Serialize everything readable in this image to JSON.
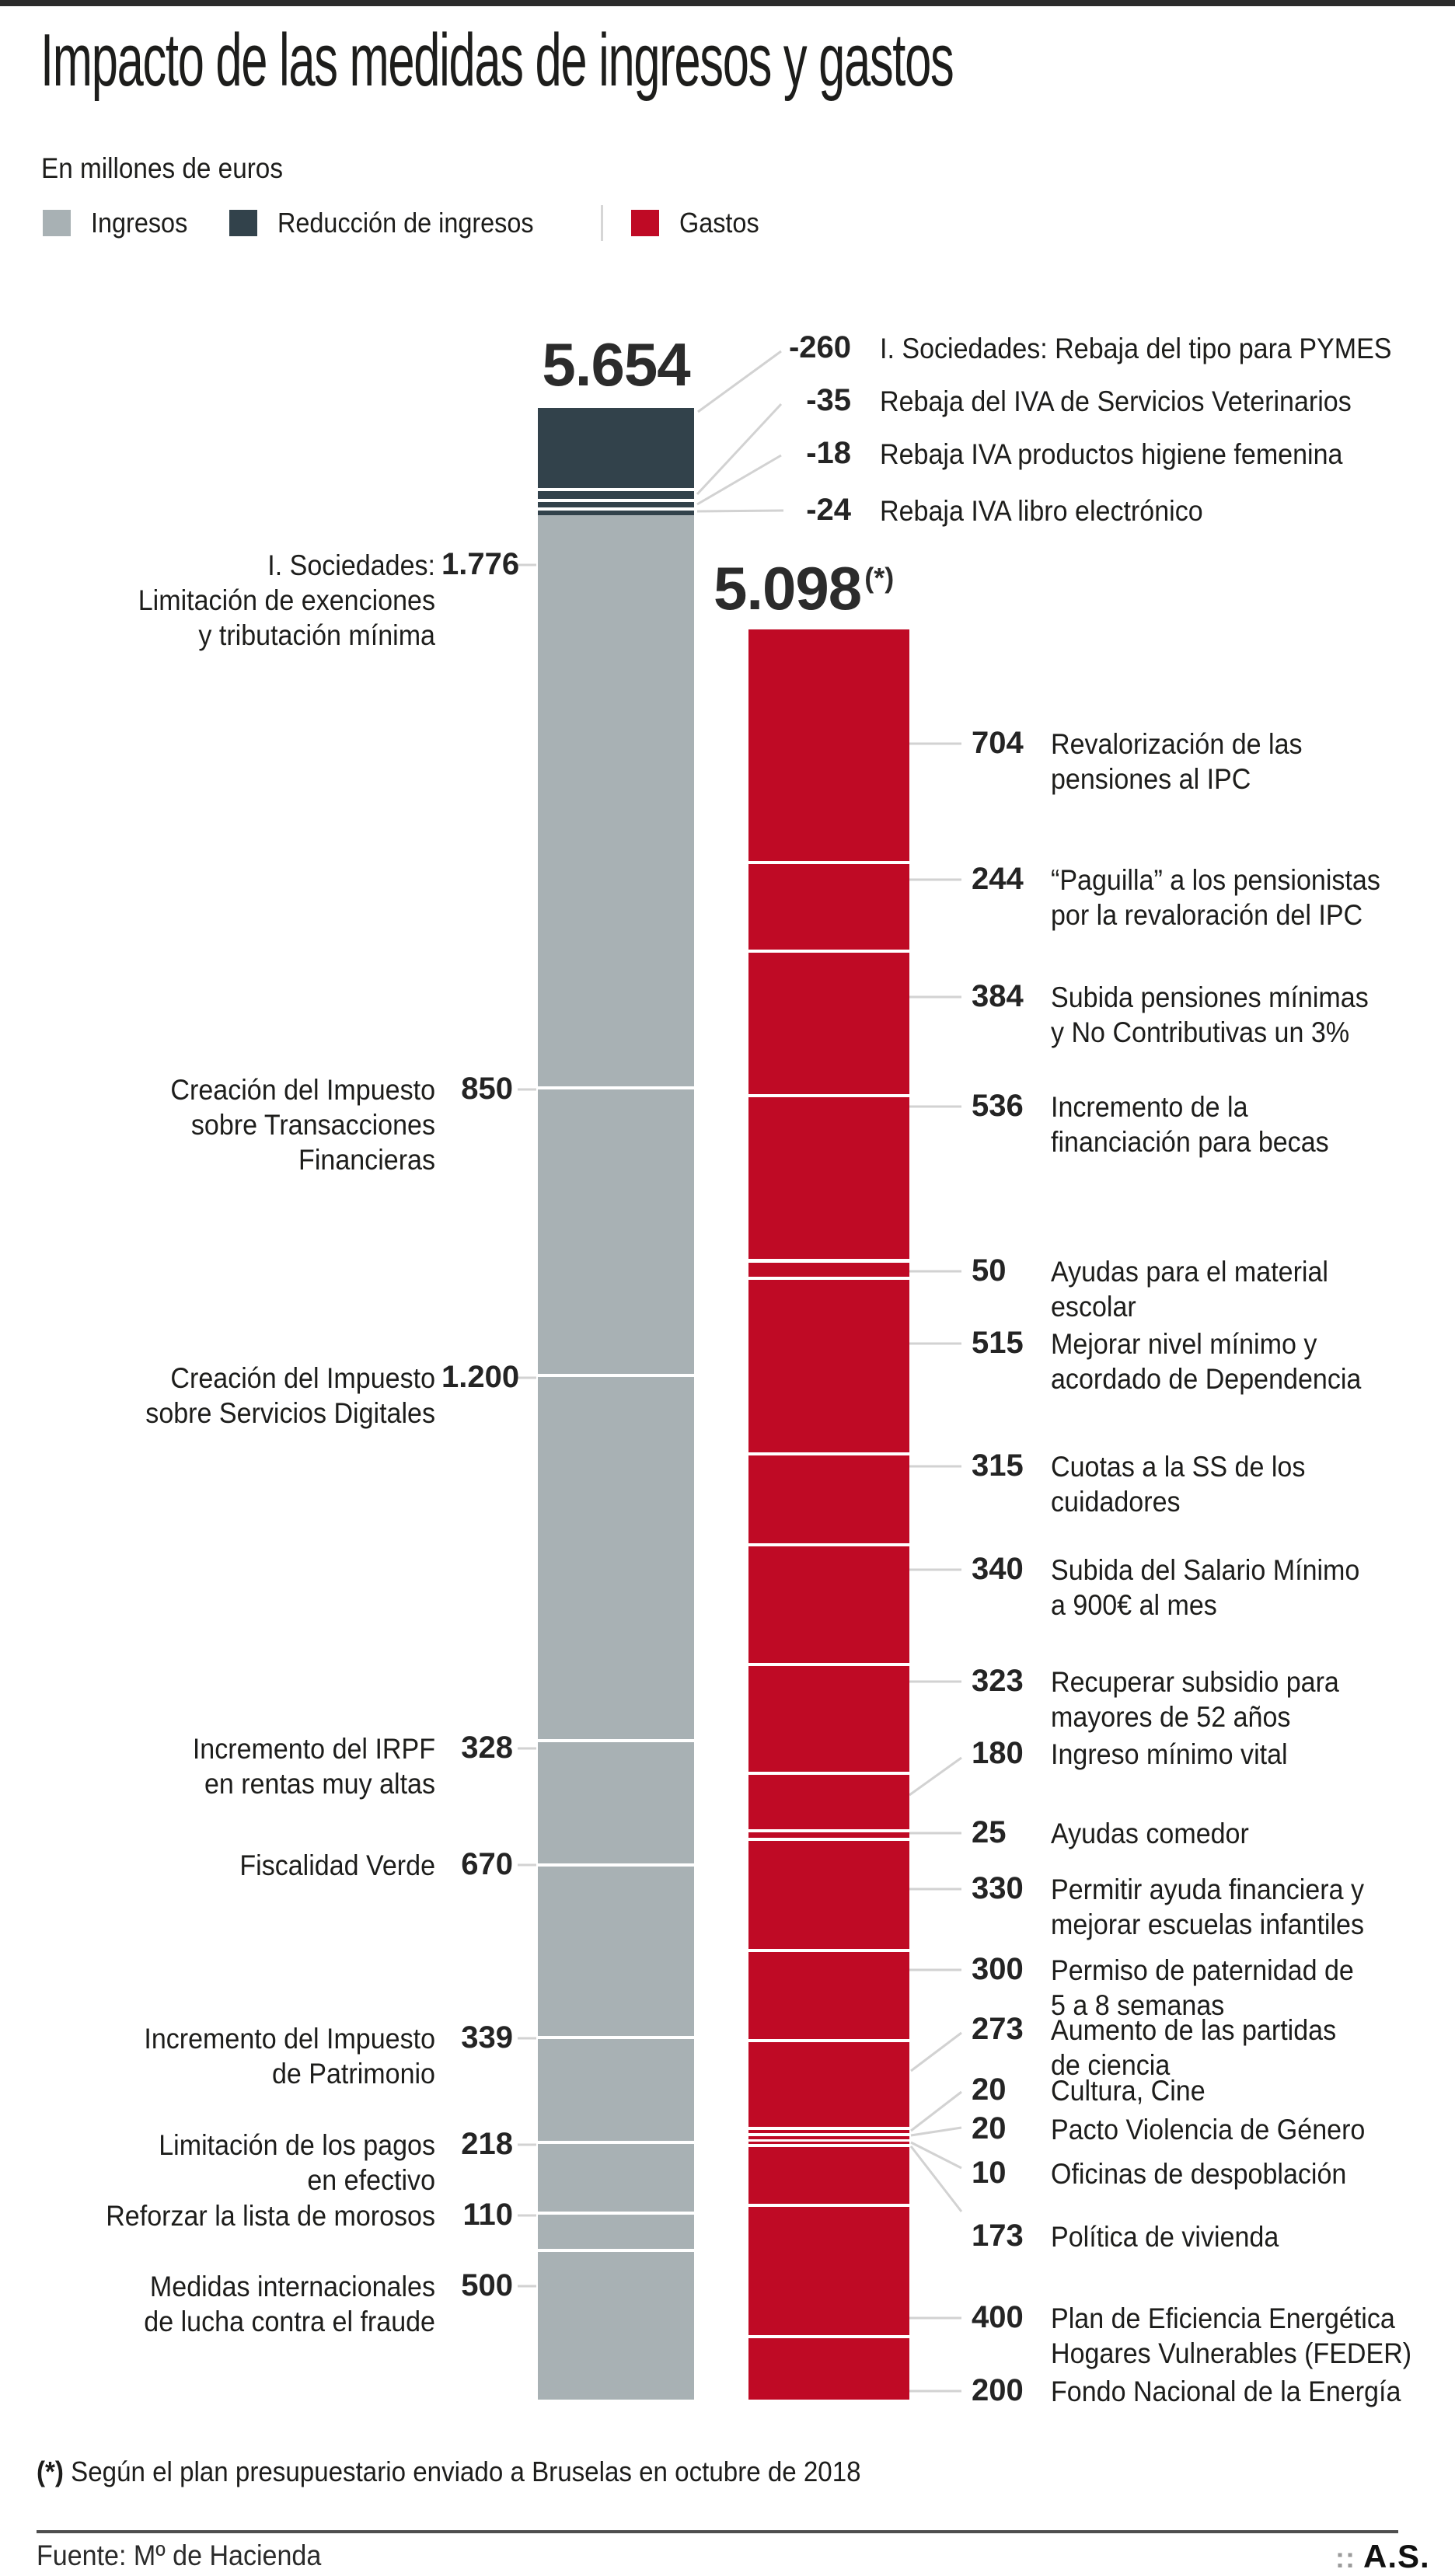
{
  "page": {
    "title": "Impacto de las medidas de ingresos y gastos",
    "subtitle": "En millones de euros"
  },
  "legend": {
    "items": [
      {
        "label": "Ingresos",
        "color": "#a8b1b4"
      },
      {
        "label": "Reducción de ingresos",
        "color": "#32424b"
      },
      {
        "label": "Gastos",
        "color": "#bf0a25"
      }
    ]
  },
  "chart_data": {
    "type": "bar",
    "subtype": "stacked-column-infographic",
    "unit": "millones de euros",
    "colors": {
      "ingresos": "#a8b1b4",
      "reduccion": "#32424b",
      "gastos": "#bf0a25",
      "connector": "#d2d2d2"
    },
    "columns": [
      {
        "id": "ingresos",
        "total_label": "5.654",
        "total_value": 5654,
        "reduction_items": [
          {
            "value": -260,
            "value_label": "-260",
            "label": "I. Sociedades: Rebaja del tipo para PYMES"
          },
          {
            "value": -35,
            "value_label": "-35",
            "label": "Rebaja del IVA de Servicios Veterinarios"
          },
          {
            "value": -18,
            "value_label": "-18",
            "label": "Rebaja IVA productos higiene femenina"
          },
          {
            "value": -24,
            "value_label": "-24",
            "label": "Rebaja IVA libro electrónico"
          }
        ],
        "items": [
          {
            "value": 1776,
            "value_label": "1.776",
            "label": "I. Sociedades:\nLimitación de exenciones\ny tributación mínima"
          },
          {
            "value": 850,
            "value_label": "850",
            "label": "Creación del Impuesto\nsobre Transacciones\nFinancieras"
          },
          {
            "value": 1200,
            "value_label": "1.200",
            "label": "Creación del Impuesto\nsobre Servicios Digitales"
          },
          {
            "value": 328,
            "value_label": "328",
            "label": "Incremento del IRPF\nen rentas muy altas"
          },
          {
            "value": 670,
            "value_label": "670",
            "label": "Fiscalidad Verde"
          },
          {
            "value": 339,
            "value_label": "339",
            "label": "Incremento del Impuesto\nde Patrimonio"
          },
          {
            "value": 218,
            "value_label": "218",
            "label": "Limitación de los pagos\nen efectivo"
          },
          {
            "value": 110,
            "value_label": "110",
            "label": "Reforzar la lista de morosos"
          },
          {
            "value": 500,
            "value_label": "500",
            "label": "Medidas internacionales\nde lucha contra el fraude"
          }
        ]
      },
      {
        "id": "gastos",
        "total_label": "5.098",
        "total_note": "(*)",
        "total_value": 5098,
        "items": [
          {
            "value": 704,
            "value_label": "704",
            "label": "Revalorización de las\npensiones al IPC"
          },
          {
            "value": 244,
            "value_label": "244",
            "label": "“Paguilla” a los pensionistas\npor la revaloración del IPC"
          },
          {
            "value": 384,
            "value_label": "384",
            "label": "Subida pensiones mínimas\ny No Contributivas un 3%"
          },
          {
            "value": 536,
            "value_label": "536",
            "label": "Incremento de la\nfinanciación para becas"
          },
          {
            "value": 50,
            "value_label": "50",
            "label": "Ayudas para el material\nescolar"
          },
          {
            "value": 515,
            "value_label": "515",
            "label": "Mejorar nivel mínimo y\nacordado de Dependencia"
          },
          {
            "value": 315,
            "value_label": "315",
            "label": "Cuotas a la SS de los\ncuidadores"
          },
          {
            "value": 340,
            "value_label": "340",
            "label": "Subida del Salario Mínimo\na 900€ al mes"
          },
          {
            "value": 323,
            "value_label": "323",
            "label": "Recuperar subsidio para\nmayores de 52 años"
          },
          {
            "value": 180,
            "value_label": "180",
            "label": "Ingreso mínimo vital"
          },
          {
            "value": 25,
            "value_label": "25",
            "label": "Ayudas comedor"
          },
          {
            "value": 330,
            "value_label": "330",
            "label": "Permitir ayuda financiera y\nmejorar escuelas infantiles"
          },
          {
            "value": 300,
            "value_label": "300",
            "label": "Permiso de paternidad de\n5 a 8 semanas"
          },
          {
            "value": 273,
            "value_label": "273",
            "label": "Aumento de las partidas\nde ciencia"
          },
          {
            "value": 20,
            "value_label": "20",
            "label": "Cultura, Cine"
          },
          {
            "value": 20,
            "value_label": "20",
            "label": "Pacto Violencia de Género"
          },
          {
            "value": 10,
            "value_label": "10",
            "label": "Oficinas de despoblación"
          },
          {
            "value": 173,
            "value_label": "173",
            "label": "Política de vivienda"
          },
          {
            "value": 400,
            "value_label": "400",
            "label": "Plan de Eficiencia Energética\nHogares Vulnerables (FEDER)"
          },
          {
            "value": 200,
            "value_label": "200",
            "label": "Fondo Nacional de la Energía"
          }
        ]
      }
    ]
  },
  "footnote": {
    "prefix": "(*)",
    "text": "Según el plan presupuestario enviado a Bruselas en octubre de 2018"
  },
  "footer": {
    "source": "Fuente: Mº de Hacienda",
    "credit_dots": "::",
    "credit": "A.S."
  }
}
